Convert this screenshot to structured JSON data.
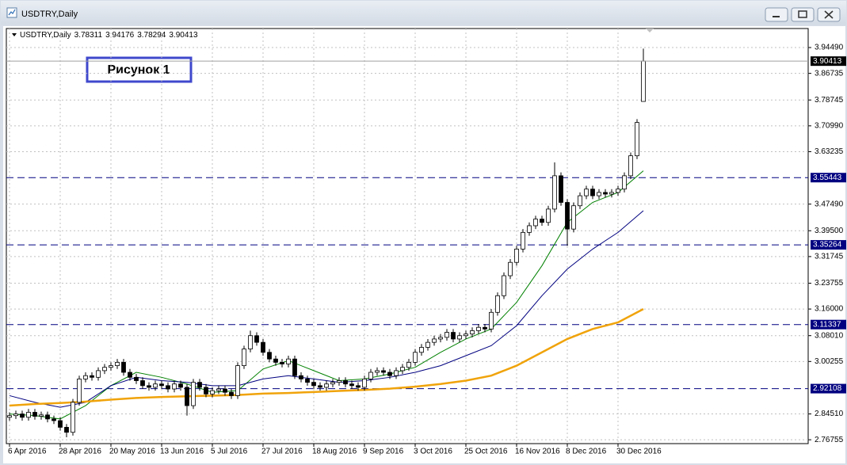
{
  "window_title": "USDTRY,Daily",
  "chart_data": {
    "type": "candlestick",
    "title": "USDTRY,Daily",
    "annotation": "Рисунок 1",
    "categories": [
      "6 Apr 2016",
      null,
      null,
      null,
      null,
      null,
      null,
      null,
      "28 Apr 2016",
      null,
      null,
      null,
      null,
      null,
      null,
      null,
      "20 May 2016",
      null,
      null,
      null,
      null,
      null,
      null,
      null,
      "13 Jun 2016",
      null,
      null,
      null,
      null,
      null,
      null,
      null,
      "5 Jul 2016",
      null,
      null,
      null,
      null,
      null,
      null,
      null,
      "27 Jul 2016",
      null,
      null,
      null,
      null,
      null,
      null,
      null,
      "18 Aug 2016",
      null,
      null,
      null,
      null,
      null,
      null,
      null,
      "9 Sep 2016",
      null,
      null,
      null,
      null,
      null,
      null,
      null,
      "3 Oct 2016",
      null,
      null,
      null,
      null,
      null,
      null,
      null,
      "25 Oct 2016",
      null,
      null,
      null,
      null,
      null,
      null,
      null,
      "16 Nov 2016",
      null,
      null,
      null,
      null,
      null,
      null,
      null,
      "8 Dec 2016",
      null,
      null,
      null,
      null,
      null,
      null,
      null,
      "30 Dec 2016",
      null,
      null,
      null,
      null
    ],
    "open": [
      2.835,
      2.84,
      2.845,
      2.835,
      2.85,
      2.838,
      2.842,
      2.83,
      2.825,
      2.805,
      2.79,
      2.88,
      2.95,
      2.96,
      2.955,
      2.975,
      2.985,
      2.99,
      3.0,
      2.97,
      2.955,
      2.945,
      2.93,
      2.925,
      2.935,
      2.93,
      2.92,
      2.935,
      2.925,
      2.87,
      2.94,
      2.925,
      2.905,
      2.915,
      2.92,
      2.91,
      2.9,
      2.99,
      3.04,
      3.08,
      3.06,
      3.03,
      3.01,
      3.0,
      2.995,
      3.01,
      2.96,
      2.95,
      2.94,
      2.93,
      2.925,
      2.935,
      2.94,
      2.945,
      2.935,
      2.93,
      2.925,
      2.95,
      2.97,
      2.975,
      2.97,
      2.96,
      2.975,
      2.985,
      3.0,
      3.03,
      3.045,
      3.06,
      3.07,
      3.075,
      3.09,
      3.07,
      3.08,
      3.085,
      3.095,
      3.105,
      3.1,
      3.15,
      3.2,
      3.26,
      3.3,
      3.34,
      3.39,
      3.41,
      3.43,
      3.42,
      3.46,
      3.56,
      3.48,
      3.4,
      3.47,
      3.5,
      3.52,
      3.5,
      3.51,
      3.505,
      3.51,
      3.52,
      3.56,
      3.62,
      3.78311
    ],
    "high": [
      2.85,
      2.855,
      2.855,
      2.86,
      2.86,
      2.852,
      2.852,
      2.84,
      2.835,
      2.815,
      2.89,
      2.96,
      2.97,
      2.97,
      2.985,
      2.995,
      3.0,
      3.01,
      3.01,
      2.98,
      2.965,
      2.955,
      2.94,
      2.945,
      2.945,
      2.94,
      2.945,
      2.945,
      2.935,
      2.95,
      2.95,
      2.935,
      2.925,
      2.93,
      2.93,
      2.92,
      3.0,
      3.05,
      3.095,
      3.09,
      3.07,
      3.04,
      3.02,
      3.01,
      3.02,
      3.02,
      2.97,
      2.96,
      2.95,
      2.94,
      2.945,
      2.95,
      2.955,
      2.955,
      2.945,
      2.94,
      2.96,
      2.98,
      2.985,
      2.985,
      2.98,
      2.985,
      2.995,
      3.01,
      3.04,
      3.055,
      3.07,
      3.08,
      3.085,
      3.1,
      3.1,
      3.09,
      3.095,
      3.105,
      3.115,
      3.115,
      3.16,
      3.21,
      3.27,
      3.31,
      3.35,
      3.4,
      3.42,
      3.44,
      3.44,
      3.47,
      3.6,
      3.57,
      3.49,
      3.48,
      3.51,
      3.53,
      3.53,
      3.52,
      3.52,
      3.52,
      3.53,
      3.57,
      3.63,
      3.73,
      3.94176
    ],
    "low": [
      2.825,
      2.83,
      2.825,
      2.825,
      2.828,
      2.828,
      2.82,
      2.815,
      2.795,
      2.775,
      2.78,
      2.87,
      2.94,
      2.945,
      2.945,
      2.965,
      2.975,
      2.98,
      2.96,
      2.945,
      2.935,
      2.92,
      2.915,
      2.915,
      2.92,
      2.91,
      2.91,
      2.915,
      2.84,
      2.86,
      2.915,
      2.895,
      2.895,
      2.905,
      2.9,
      2.89,
      2.89,
      2.98,
      3.03,
      3.05,
      3.02,
      3.0,
      2.99,
      2.985,
      2.985,
      2.95,
      2.94,
      2.93,
      2.92,
      2.915,
      2.915,
      2.925,
      2.93,
      2.925,
      2.92,
      2.915,
      2.915,
      2.94,
      2.96,
      2.96,
      2.95,
      2.95,
      2.965,
      2.975,
      2.99,
      3.02,
      3.035,
      3.05,
      3.06,
      3.065,
      3.06,
      3.06,
      3.07,
      3.075,
      3.085,
      3.09,
      3.09,
      3.14,
      3.19,
      3.25,
      3.29,
      3.33,
      3.38,
      3.4,
      3.41,
      3.41,
      3.45,
      3.47,
      3.35,
      3.39,
      3.46,
      3.49,
      3.49,
      3.49,
      3.495,
      3.495,
      3.5,
      3.51,
      3.55,
      3.61,
      3.78294
    ],
    "close": [
      2.84,
      2.845,
      2.835,
      2.85,
      2.838,
      2.842,
      2.83,
      2.825,
      2.805,
      2.79,
      2.88,
      2.95,
      2.96,
      2.955,
      2.975,
      2.985,
      2.99,
      3.0,
      2.97,
      2.955,
      2.945,
      2.93,
      2.925,
      2.935,
      2.93,
      2.92,
      2.935,
      2.925,
      2.87,
      2.94,
      2.925,
      2.905,
      2.915,
      2.92,
      2.91,
      2.9,
      2.99,
      3.04,
      3.08,
      3.06,
      3.03,
      3.01,
      3.0,
      2.995,
      3.01,
      2.96,
      2.95,
      2.94,
      2.93,
      2.925,
      2.935,
      2.94,
      2.945,
      2.935,
      2.93,
      2.925,
      2.95,
      2.97,
      2.975,
      2.97,
      2.96,
      2.975,
      2.985,
      3.0,
      3.03,
      3.045,
      3.06,
      3.07,
      3.075,
      3.09,
      3.07,
      3.08,
      3.085,
      3.095,
      3.105,
      3.1,
      3.15,
      3.2,
      3.26,
      3.3,
      3.34,
      3.39,
      3.41,
      3.43,
      3.42,
      3.46,
      3.56,
      3.48,
      3.4,
      3.47,
      3.5,
      3.52,
      3.5,
      3.51,
      3.505,
      3.51,
      3.52,
      3.56,
      3.62,
      3.72,
      3.90413
    ],
    "up_color": "#ffffff",
    "down_color": "#000000",
    "ma": [
      {
        "color": "#008000",
        "x": [
          0,
          4,
          8,
          12,
          16,
          20,
          24,
          28,
          32,
          36,
          40,
          44,
          48,
          52,
          56,
          60,
          64,
          68,
          72,
          76,
          80,
          84,
          88,
          92,
          96,
          100
        ],
        "values": [
          2.845,
          2.84,
          2.83,
          2.87,
          2.93,
          2.97,
          2.955,
          2.935,
          2.91,
          2.915,
          2.98,
          3.005,
          2.975,
          2.945,
          2.95,
          2.965,
          2.985,
          3.03,
          3.07,
          3.1,
          3.18,
          3.29,
          3.42,
          3.48,
          3.51,
          3.575
        ]
      },
      {
        "color": "#000080",
        "x": [
          0,
          4,
          8,
          12,
          16,
          20,
          24,
          28,
          32,
          36,
          40,
          44,
          48,
          52,
          56,
          60,
          64,
          68,
          72,
          76,
          80,
          84,
          88,
          92,
          96,
          100
        ],
        "values": [
          2.9,
          2.88,
          2.865,
          2.88,
          2.93,
          2.955,
          2.945,
          2.94,
          2.93,
          2.93,
          2.95,
          2.96,
          2.95,
          2.94,
          2.945,
          2.955,
          2.97,
          2.99,
          3.02,
          3.05,
          3.11,
          3.2,
          3.28,
          3.34,
          3.39,
          3.455
        ]
      },
      {
        "color": "#f0a30a",
        "x": [
          0,
          4,
          8,
          12,
          16,
          20,
          24,
          28,
          32,
          36,
          40,
          44,
          48,
          52,
          56,
          60,
          64,
          68,
          72,
          76,
          80,
          84,
          88,
          92,
          96,
          100
        ],
        "values": [
          2.87,
          2.875,
          2.878,
          2.882,
          2.888,
          2.893,
          2.896,
          2.898,
          2.9,
          2.902,
          2.906,
          2.908,
          2.911,
          2.914,
          2.917,
          2.921,
          2.927,
          2.935,
          2.945,
          2.96,
          2.99,
          3.03,
          3.07,
          3.1,
          3.12,
          3.16
        ]
      }
    ],
    "levels": [
      3.55443,
      3.35264,
      3.11337,
      2.92108
    ],
    "level_color": "#000080",
    "ylim": [
      2.756,
      4.002
    ],
    "yticks": [
      {
        "value": 3.9449,
        "label": "3.94490"
      },
      3.86735,
      3.78745,
      {
        "value": 3.7099,
        "label": "3.70990"
      },
      3.63235,
      {
        "value": 3.4749,
        "label": "3.47490"
      },
      {
        "value": 3.395,
        "label": "3.39500"
      },
      3.31745,
      3.23755,
      {
        "value": 3.16,
        "label": "3.16000"
      },
      {
        "value": 3.0801,
        "label": "3.08010"
      },
      3.00255,
      {
        "value": 2.8451,
        "label": "2.84510"
      },
      2.76755
    ],
    "grid": true
  }
}
